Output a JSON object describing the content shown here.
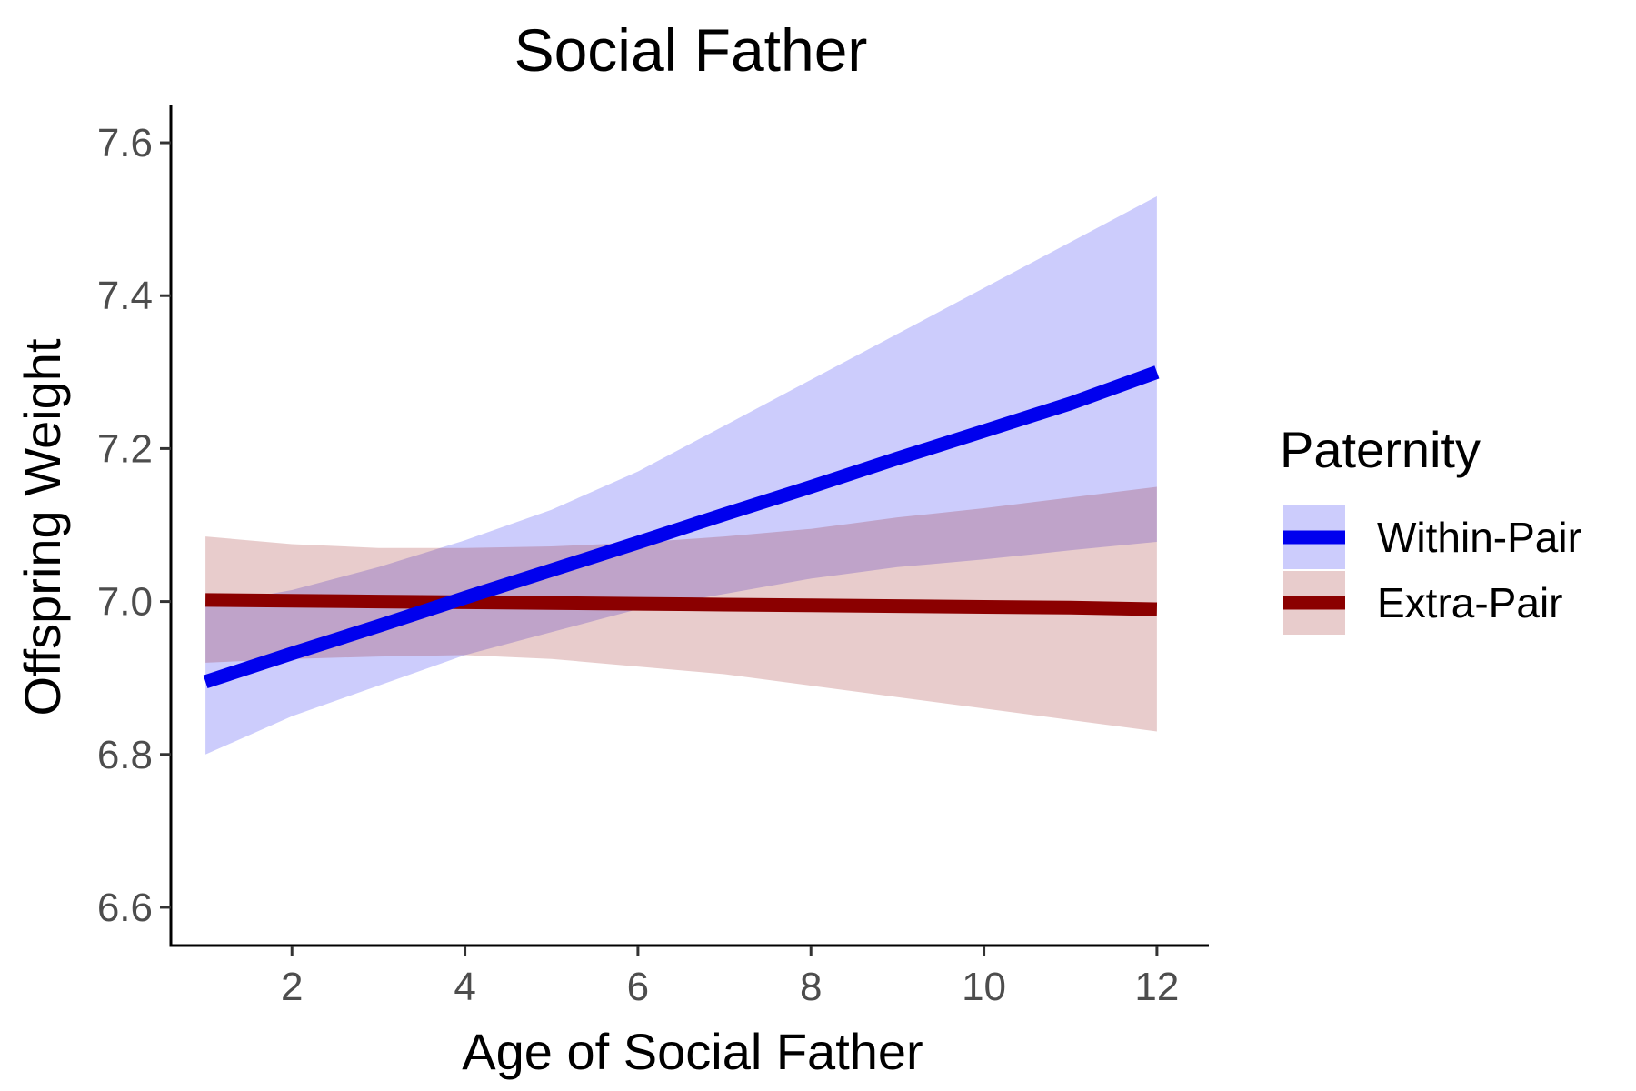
{
  "chart_data": {
    "type": "line",
    "title": "Social Father",
    "xlabel": "Age of Social Father",
    "ylabel": "Offspring Weight",
    "xlim": [
      0.6,
      12.6
    ],
    "ylim": [
      6.55,
      7.65
    ],
    "xticks": [
      2,
      4,
      6,
      8,
      10,
      12
    ],
    "xtick_labels": [
      "2",
      "4",
      "6",
      "8",
      "10",
      "12"
    ],
    "yticks": [
      6.6,
      6.8,
      7.0,
      7.2,
      7.4,
      7.6
    ],
    "ytick_labels": [
      "6.6",
      "6.8",
      "7.0",
      "7.2",
      "7.4",
      "7.6"
    ],
    "grid": false,
    "legend": {
      "title": "Paternity",
      "position": "right"
    },
    "series": [
      {
        "name": "Within-Pair",
        "color": "#0000ee",
        "ribbon_color": "#ccccfc",
        "x": [
          1,
          2,
          3,
          4,
          5,
          6,
          7,
          8,
          9,
          10,
          11,
          12
        ],
        "y": [
          6.895,
          6.932,
          6.968,
          7.005,
          7.041,
          7.077,
          7.114,
          7.15,
          7.187,
          7.223,
          7.259,
          7.3
        ],
        "lower": [
          6.8,
          6.85,
          6.89,
          6.93,
          6.96,
          6.99,
          7.01,
          7.03,
          7.045,
          7.055,
          7.067,
          7.078
        ],
        "upper": [
          6.995,
          7.015,
          7.045,
          7.08,
          7.12,
          7.17,
          7.23,
          7.29,
          7.35,
          7.41,
          7.47,
          7.53
        ]
      },
      {
        "name": "Extra-Pair",
        "color": "#8b0000",
        "ribbon_color": "#e7cccd",
        "x": [
          1,
          2,
          3,
          4,
          5,
          6,
          7,
          8,
          9,
          10,
          11,
          12
        ],
        "y": [
          7.002,
          7.001,
          7.0,
          6.999,
          6.998,
          6.997,
          6.996,
          6.995,
          6.994,
          6.993,
          6.992,
          6.99
        ],
        "lower": [
          6.92,
          6.925,
          6.928,
          6.93,
          6.925,
          6.915,
          6.905,
          6.89,
          6.875,
          6.86,
          6.845,
          6.83
        ],
        "upper": [
          7.085,
          7.075,
          7.07,
          7.07,
          7.072,
          7.077,
          7.085,
          7.095,
          7.11,
          7.122,
          7.136,
          7.15
        ]
      }
    ]
  }
}
